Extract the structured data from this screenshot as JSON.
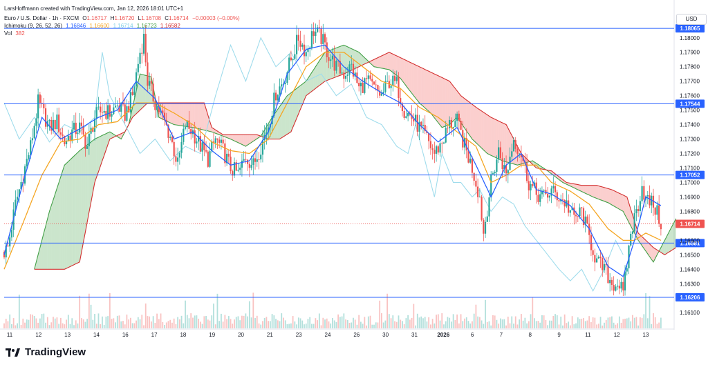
{
  "header": {
    "credit": "LarsHoffmann created with TradingView.com, Jan 12, 2026 18:01 UTC+1",
    "symbol": "Euro / U.S. Dollar · 1h · FXCM",
    "ohlc": {
      "o_label": "O",
      "o": "1.16717",
      "h_label": "H",
      "h": "1.16720",
      "l_label": "L",
      "l": "1.16708",
      "c_label": "C",
      "c": "1.16714",
      "change": "−0.00003 (−0.00%)"
    },
    "ichimoku": {
      "label": "Ichimoku (9, 26, 52, 26)",
      "v1": "1.16846",
      "v2": "1.16600",
      "v3": "1.16714",
      "v4": "1.16723",
      "v5": "1.16582"
    },
    "vol": {
      "label": "Vol",
      "value": "382"
    }
  },
  "currency_label": "USD",
  "brand": "TradingView",
  "colors": {
    "up": "#26a69a",
    "down": "#ef5350",
    "tenkan": "#2962ff",
    "kijun": "#f5a623",
    "chikou": "#9fdcec",
    "span_a": "#43a047",
    "span_b": "#d32f2f",
    "cloud_bull": "rgba(67,160,71,0.28)",
    "cloud_bear": "rgba(239,83,80,0.28)",
    "hline": "#2962ff",
    "axis_text": "#131722"
  },
  "chart_data": {
    "type": "candlestick",
    "instrument": "EUR/USD",
    "timeframe": "1h",
    "ylim": [
      1.1602,
      1.1808
    ],
    "y_ticks": [
      "1.18000",
      "1.17900",
      "1.17800",
      "1.17700",
      "1.17600",
      "1.17500",
      "1.17400",
      "1.17300",
      "1.17200",
      "1.17100",
      "1.17000",
      "1.16900",
      "1.16800",
      "1.16600",
      "1.16500",
      "1.16400",
      "1.16300",
      "1.16100"
    ],
    "x_ticks": [
      "11",
      "12",
      "13",
      "14",
      "16",
      "17",
      "18",
      "19",
      "20",
      "21",
      "23",
      "24",
      "26",
      "30",
      "31",
      "2026",
      "6",
      "7",
      "8",
      "9",
      "11",
      "12",
      "13"
    ],
    "x_range_bars": 355,
    "horizontal_lines": [
      {
        "value": 1.18065,
        "label": "1.18065"
      },
      {
        "value": 1.17544,
        "label": "1.17544"
      },
      {
        "value": 1.17052,
        "label": "1.17052"
      },
      {
        "value": 1.16581,
        "label": "1.16581"
      },
      {
        "value": 1.16206,
        "label": "1.16206"
      }
    ],
    "last_price": {
      "value": 1.16714,
      "label": "1.16714"
    },
    "price_path": [
      [
        0,
        1.1652
      ],
      [
        2,
        1.1655
      ],
      [
        6,
        1.1685
      ],
      [
        10,
        1.1705
      ],
      [
        14,
        1.1725
      ],
      [
        18,
        1.1755
      ],
      [
        20,
        1.175
      ],
      [
        24,
        1.1738
      ],
      [
        28,
        1.1742
      ],
      [
        32,
        1.1728
      ],
      [
        36,
        1.1735
      ],
      [
        40,
        1.1738
      ],
      [
        44,
        1.1725
      ],
      [
        48,
        1.1745
      ],
      [
        52,
        1.175
      ],
      [
        56,
        1.1748
      ],
      [
        60,
        1.1753
      ],
      [
        64,
        1.1747
      ],
      [
        68,
        1.176
      ],
      [
        72,
        1.179
      ],
      [
        74,
        1.18
      ],
      [
        76,
        1.177
      ],
      [
        80,
        1.1755
      ],
      [
        84,
        1.1745
      ],
      [
        88,
        1.1732
      ],
      [
        92,
        1.1712
      ],
      [
        96,
        1.174
      ],
      [
        100,
        1.1735
      ],
      [
        104,
        1.1725
      ],
      [
        108,
        1.1716
      ],
      [
        112,
        1.173
      ],
      [
        116,
        1.1722
      ],
      [
        120,
        1.171
      ],
      [
        124,
        1.1706
      ],
      [
        128,
        1.1718
      ],
      [
        132,
        1.1712
      ],
      [
        136,
        1.1725
      ],
      [
        140,
        1.174
      ],
      [
        144,
        1.1762
      ],
      [
        148,
        1.177
      ],
      [
        152,
        1.1785
      ],
      [
        156,
        1.18
      ],
      [
        160,
        1.179
      ],
      [
        164,
        1.1805
      ],
      [
        168,
        1.18
      ],
      [
        172,
        1.1788
      ],
      [
        176,
        1.178
      ],
      [
        180,
        1.1775
      ],
      [
        184,
        1.178
      ],
      [
        188,
        1.1765
      ],
      [
        192,
        1.177
      ],
      [
        196,
        1.1765
      ],
      [
        200,
        1.176
      ],
      [
        204,
        1.177
      ],
      [
        208,
        1.1768
      ],
      [
        212,
        1.175
      ],
      [
        216,
        1.1745
      ],
      [
        220,
        1.1738
      ],
      [
        224,
        1.173
      ],
      [
        228,
        1.172
      ],
      [
        232,
        1.1728
      ],
      [
        236,
        1.174
      ],
      [
        240,
        1.1742
      ],
      [
        244,
        1.1725
      ],
      [
        248,
        1.171
      ],
      [
        252,
        1.169
      ],
      [
        254,
        1.1665
      ],
      [
        258,
        1.17
      ],
      [
        262,
        1.1722
      ],
      [
        266,
        1.1705
      ],
      [
        270,
        1.173
      ],
      [
        274,
        1.172
      ],
      [
        278,
        1.17
      ],
      [
        282,
        1.1692
      ],
      [
        286,
        1.169
      ],
      [
        290,
        1.1694
      ],
      [
        294,
        1.169
      ],
      [
        298,
        1.1685
      ],
      [
        302,
        1.1675
      ],
      [
        306,
        1.168
      ],
      [
        310,
        1.1662
      ],
      [
        314,
        1.1645
      ],
      [
        318,
        1.164
      ],
      [
        322,
        1.163
      ],
      [
        326,
        1.163
      ],
      [
        328,
        1.1622
      ],
      [
        332,
        1.1665
      ],
      [
        336,
        1.1685
      ],
      [
        338,
        1.1698
      ],
      [
        340,
        1.1688
      ],
      [
        344,
        1.1685
      ],
      [
        348,
        1.1672
      ]
    ],
    "tenkan_path": [
      [
        0,
        1.165
      ],
      [
        10,
        1.17
      ],
      [
        20,
        1.1745
      ],
      [
        30,
        1.173
      ],
      [
        40,
        1.1737
      ],
      [
        50,
        1.1745
      ],
      [
        60,
        1.175
      ],
      [
        70,
        1.177
      ],
      [
        80,
        1.1758
      ],
      [
        90,
        1.173
      ],
      [
        100,
        1.1735
      ],
      [
        110,
        1.1722
      ],
      [
        120,
        1.1712
      ],
      [
        130,
        1.1715
      ],
      [
        140,
        1.1735
      ],
      [
        150,
        1.1775
      ],
      [
        160,
        1.1792
      ],
      [
        170,
        1.1795
      ],
      [
        180,
        1.178
      ],
      [
        190,
        1.177
      ],
      [
        200,
        1.1762
      ],
      [
        210,
        1.1755
      ],
      [
        220,
        1.174
      ],
      [
        230,
        1.1728
      ],
      [
        240,
        1.1738
      ],
      [
        250,
        1.1712
      ],
      [
        258,
        1.169
      ],
      [
        266,
        1.1712
      ],
      [
        274,
        1.172
      ],
      [
        282,
        1.1695
      ],
      [
        290,
        1.1692
      ],
      [
        300,
        1.1684
      ],
      [
        310,
        1.1668
      ],
      [
        320,
        1.1642
      ],
      [
        328,
        1.1635
      ],
      [
        334,
        1.166
      ],
      [
        340,
        1.169
      ],
      [
        348,
        1.1684
      ]
    ],
    "kijun_path": [
      [
        0,
        1.164
      ],
      [
        10,
        1.1672
      ],
      [
        20,
        1.1705
      ],
      [
        30,
        1.1728
      ],
      [
        40,
        1.173
      ],
      [
        50,
        1.174
      ],
      [
        60,
        1.1742
      ],
      [
        70,
        1.1755
      ],
      [
        80,
        1.1755
      ],
      [
        90,
        1.1748
      ],
      [
        100,
        1.174
      ],
      [
        110,
        1.1728
      ],
      [
        120,
        1.1722
      ],
      [
        130,
        1.172
      ],
      [
        140,
        1.173
      ],
      [
        150,
        1.1755
      ],
      [
        160,
        1.178
      ],
      [
        170,
        1.179
      ],
      [
        180,
        1.179
      ],
      [
        190,
        1.178
      ],
      [
        200,
        1.177
      ],
      [
        210,
        1.1765
      ],
      [
        220,
        1.1752
      ],
      [
        230,
        1.1745
      ],
      [
        240,
        1.1735
      ],
      [
        250,
        1.1725
      ],
      [
        258,
        1.17
      ],
      [
        266,
        1.1705
      ],
      [
        274,
        1.1712
      ],
      [
        282,
        1.1712
      ],
      [
        290,
        1.17
      ],
      [
        300,
        1.1694
      ],
      [
        310,
        1.1685
      ],
      [
        320,
        1.1668
      ],
      [
        328,
        1.166
      ],
      [
        334,
        1.166
      ],
      [
        340,
        1.1665
      ],
      [
        348,
        1.166
      ]
    ],
    "chikou_path": [
      [
        0,
        1.1755
      ],
      [
        8,
        1.173
      ],
      [
        16,
        1.1745
      ],
      [
        24,
        1.1728
      ],
      [
        32,
        1.174
      ],
      [
        40,
        1.1735
      ],
      [
        48,
        1.1745
      ],
      [
        52,
        1.179
      ],
      [
        56,
        1.176
      ],
      [
        64,
        1.174
      ],
      [
        72,
        1.172
      ],
      [
        80,
        1.173
      ],
      [
        88,
        1.1715
      ],
      [
        96,
        1.1725
      ],
      [
        104,
        1.172
      ],
      [
        112,
        1.176
      ],
      [
        120,
        1.1795
      ],
      [
        128,
        1.177
      ],
      [
        136,
        1.18
      ],
      [
        144,
        1.178
      ],
      [
        152,
        1.179
      ],
      [
        160,
        1.177
      ],
      [
        168,
        1.1775
      ],
      [
        176,
        1.176
      ],
      [
        184,
        1.1768
      ],
      [
        192,
        1.1745
      ],
      [
        200,
        1.174
      ],
      [
        208,
        1.1725
      ],
      [
        214,
        1.172
      ],
      [
        218,
        1.174
      ],
      [
        224,
        1.171
      ],
      [
        228,
        1.169
      ],
      [
        232,
        1.172
      ],
      [
        238,
        1.17
      ],
      [
        242,
        1.17
      ],
      [
        248,
        1.169
      ],
      [
        252,
        1.1695
      ],
      [
        258,
        1.168
      ],
      [
        264,
        1.169
      ],
      [
        270,
        1.1685
      ],
      [
        276,
        1.167
      ],
      [
        282,
        1.166
      ],
      [
        288,
        1.165
      ],
      [
        294,
        1.164
      ],
      [
        300,
        1.1632
      ],
      [
        306,
        1.164
      ],
      [
        312,
        1.1625
      ],
      [
        318,
        1.164
      ],
      [
        324,
        1.166
      ],
      [
        328,
        1.165
      ]
    ],
    "span_a_path": [
      [
        16,
        1.164
      ],
      [
        24,
        1.168
      ],
      [
        32,
        1.1712
      ],
      [
        40,
        1.1722
      ],
      [
        48,
        1.173
      ],
      [
        56,
        1.1735
      ],
      [
        62,
        1.173
      ],
      [
        66,
        1.174
      ],
      [
        72,
        1.1775
      ],
      [
        78,
        1.1773
      ],
      [
        82,
        1.1745
      ],
      [
        90,
        1.174
      ],
      [
        100,
        1.1738
      ],
      [
        110,
        1.1735
      ],
      [
        120,
        1.173
      ],
      [
        128,
        1.1725
      ],
      [
        136,
        1.1732
      ],
      [
        142,
        1.1745
      ],
      [
        150,
        1.176
      ],
      [
        160,
        1.177
      ],
      [
        170,
        1.179
      ],
      [
        180,
        1.1795
      ],
      [
        188,
        1.179
      ],
      [
        196,
        1.178
      ],
      [
        204,
        1.1778
      ],
      [
        210,
        1.1772
      ],
      [
        214,
        1.1765
      ],
      [
        220,
        1.1755
      ],
      [
        226,
        1.1748
      ],
      [
        232,
        1.1738
      ],
      [
        236,
        1.174
      ],
      [
        240,
        1.1745
      ],
      [
        248,
        1.173
      ],
      [
        256,
        1.172
      ],
      [
        264,
        1.1715
      ],
      [
        272,
        1.1712
      ],
      [
        280,
        1.1715
      ],
      [
        288,
        1.1708
      ],
      [
        296,
        1.17
      ],
      [
        304,
        1.1695
      ],
      [
        312,
        1.169
      ],
      [
        320,
        1.1686
      ],
      [
        328,
        1.168
      ],
      [
        336,
        1.166
      ],
      [
        344,
        1.1645
      ],
      [
        350,
        1.166
      ],
      [
        356,
        1.1675
      ]
    ],
    "span_b_path": [
      [
        16,
        1.164
      ],
      [
        24,
        1.164
      ],
      [
        32,
        1.164
      ],
      [
        40,
        1.1645
      ],
      [
        48,
        1.17
      ],
      [
        56,
        1.173
      ],
      [
        64,
        1.1735
      ],
      [
        68,
        1.1745
      ],
      [
        76,
        1.1755
      ],
      [
        84,
        1.1755
      ],
      [
        92,
        1.1755
      ],
      [
        100,
        1.1755
      ],
      [
        106,
        1.1755
      ],
      [
        110,
        1.1738
      ],
      [
        116,
        1.1733
      ],
      [
        126,
        1.1733
      ],
      [
        134,
        1.1733
      ],
      [
        140,
        1.173
      ],
      [
        146,
        1.173
      ],
      [
        152,
        1.1735
      ],
      [
        160,
        1.176
      ],
      [
        170,
        1.177
      ],
      [
        180,
        1.1775
      ],
      [
        188,
        1.178
      ],
      [
        196,
        1.1785
      ],
      [
        204,
        1.179
      ],
      [
        212,
        1.1785
      ],
      [
        220,
        1.178
      ],
      [
        228,
        1.1775
      ],
      [
        236,
        1.177
      ],
      [
        242,
        1.176
      ],
      [
        250,
        1.1752
      ],
      [
        258,
        1.1745
      ],
      [
        266,
        1.174
      ],
      [
        274,
        1.172
      ],
      [
        282,
        1.171
      ],
      [
        290,
        1.1708
      ],
      [
        298,
        1.17
      ],
      [
        306,
        1.1698
      ],
      [
        314,
        1.1698
      ],
      [
        322,
        1.1695
      ],
      [
        330,
        1.169
      ],
      [
        336,
        1.1665
      ],
      [
        344,
        1.1655
      ],
      [
        350,
        1.165
      ],
      [
        356,
        1.1655
      ]
    ]
  }
}
